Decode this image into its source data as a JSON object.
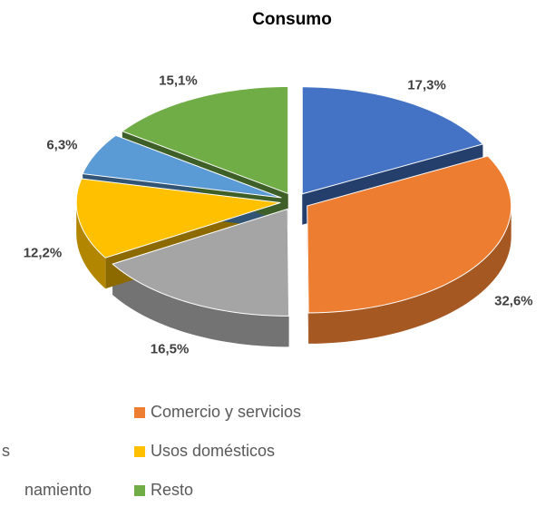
{
  "chart_data": {
    "type": "pie3d",
    "title": "Consumo",
    "categories": [
      null,
      "Comercio y servicios",
      "s",
      "Usos domésticos",
      "namiento",
      "Resto"
    ],
    "values": [
      17.3,
      32.6,
      16.5,
      12.2,
      6.3,
      15.1
    ],
    "value_labels": [
      "17,3%",
      "32,6%",
      "16,5%",
      "12,2%",
      "6,3%",
      "15,1%"
    ],
    "colors": [
      "#4472c4",
      "#ed7d31",
      "#a5a5a5",
      "#ffc000",
      "#5b9bd5",
      "#70ad47"
    ]
  }
}
